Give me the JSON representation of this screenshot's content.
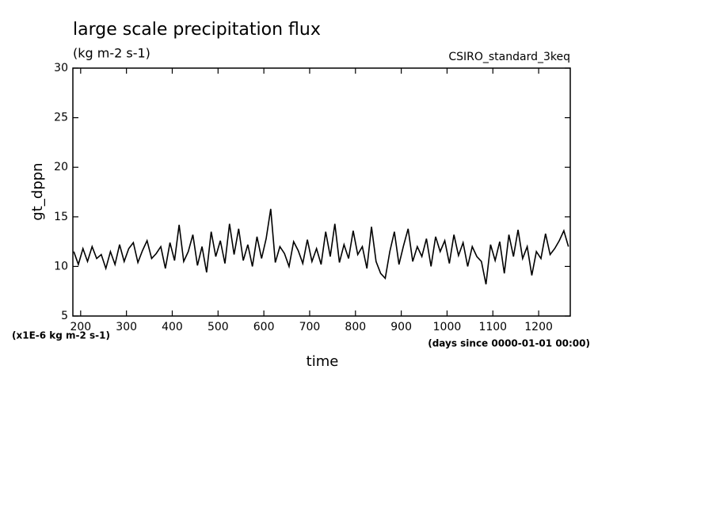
{
  "chart_data": {
    "type": "line",
    "title": "large scale precipitation flux",
    "subtitle": "(kg m-2 s-1)",
    "annotation": "CSIRO_standard_3keq",
    "y_label": "gt_dppn",
    "y_unit_note": "(x1E-6 kg m-2 s-1)",
    "x_unit_note": "(days since 0000-01-01 00:00)",
    "x_label": "time",
    "xlim": [
      183,
      1269
    ],
    "ylim": [
      5,
      30
    ],
    "xticks": [
      200,
      300,
      400,
      500,
      600,
      700,
      800,
      900,
      1000,
      1100,
      1200
    ],
    "yticks": [
      5,
      10,
      15,
      20,
      25,
      30
    ],
    "series": [
      {
        "color": "#000000",
        "x": [
          185,
          195,
          205,
          215,
          225,
          235,
          245,
          255,
          265,
          275,
          285,
          295,
          305,
          315,
          325,
          335,
          345,
          355,
          365,
          375,
          385,
          395,
          405,
          415,
          425,
          435,
          445,
          455,
          465,
          475,
          485,
          495,
          505,
          515,
          525,
          535,
          545,
          555,
          565,
          575,
          585,
          595,
          605,
          615,
          625,
          635,
          645,
          655,
          665,
          675,
          685,
          695,
          705,
          715,
          725,
          735,
          745,
          755,
          765,
          775,
          785,
          795,
          805,
          815,
          825,
          835,
          845,
          855,
          865,
          875,
          885,
          895,
          905,
          915,
          925,
          935,
          945,
          955,
          965,
          975,
          985,
          995,
          1005,
          1015,
          1025,
          1035,
          1045,
          1055,
          1065,
          1075,
          1085,
          1095,
          1105,
          1115,
          1125,
          1135,
          1145,
          1155,
          1165,
          1175,
          1185,
          1195,
          1205,
          1215,
          1225,
          1235,
          1245,
          1255,
          1265
        ],
        "values": [
          11.5,
          10.2,
          11.8,
          10.5,
          12.0,
          10.8,
          11.2,
          9.8,
          11.5,
          10.2,
          12.2,
          10.5,
          11.8,
          12.4,
          10.4,
          11.6,
          12.6,
          10.8,
          11.3,
          12.0,
          9.8,
          12.4,
          10.6,
          14.2,
          10.5,
          11.5,
          13.2,
          10.1,
          12.0,
          9.4,
          13.5,
          11.0,
          12.6,
          10.3,
          14.3,
          11.2,
          13.8,
          10.6,
          12.2,
          10.0,
          13.0,
          10.8,
          12.8,
          15.8,
          10.4,
          12.0,
          11.3,
          10.0,
          12.5,
          11.6,
          10.3,
          12.7,
          10.5,
          11.8,
          10.2,
          13.5,
          11.0,
          14.3,
          10.4,
          12.2,
          10.8,
          13.6,
          11.2,
          12.0,
          9.8,
          14.0,
          10.5,
          9.3,
          8.8,
          11.5,
          13.5,
          10.2,
          12.1,
          13.8,
          10.5,
          12.0,
          11.0,
          12.8,
          10.0,
          13.0,
          11.5,
          12.6,
          10.3,
          13.2,
          11.1,
          12.4,
          10.0,
          12.0,
          11.0,
          10.5,
          8.2,
          12.2,
          10.6,
          12.5,
          9.3,
          13.2,
          11.0,
          13.7,
          10.8,
          12.0,
          9.1,
          11.5,
          10.8,
          13.3,
          11.2,
          11.8,
          12.6,
          13.6,
          12.0
        ]
      }
    ]
  }
}
